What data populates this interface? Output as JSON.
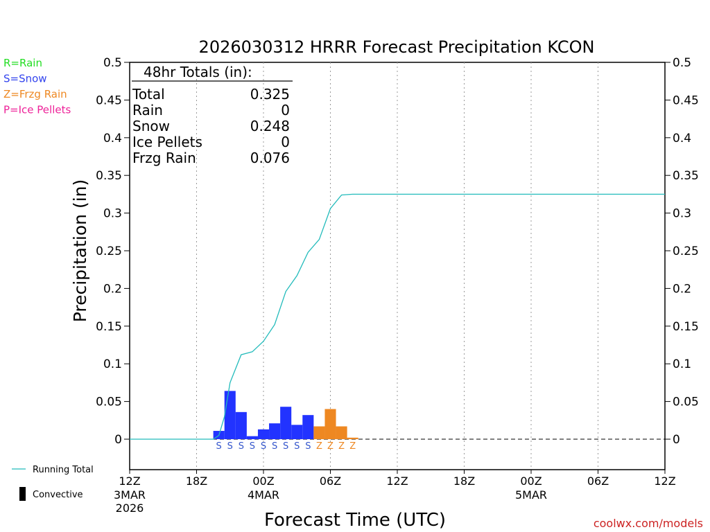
{
  "chart_data": {
    "type": "bar",
    "title": "2026030312 HRRR Forecast Precipitation KCON",
    "xlabel": "Forecast Time (UTC)",
    "ylabel": "Precipitation (in)",
    "ylim": [
      0,
      0.5
    ],
    "y_ticks": [
      "0.5",
      "0.45",
      "0.4",
      "0.35",
      "0.3",
      "0.25",
      "0.2",
      "0.15",
      "0.1",
      "0.05",
      "0"
    ],
    "x_range_hours": [
      0,
      48
    ],
    "x_ticks": [
      {
        "hour": 0,
        "label": "12Z"
      },
      {
        "hour": 6,
        "label": "18Z"
      },
      {
        "hour": 12,
        "label": "00Z"
      },
      {
        "hour": 18,
        "label": "06Z"
      },
      {
        "hour": 24,
        "label": "12Z"
      },
      {
        "hour": 30,
        "label": "18Z"
      },
      {
        "hour": 36,
        "label": "00Z"
      },
      {
        "hour": 42,
        "label": "06Z"
      },
      {
        "hour": 48,
        "label": "12Z"
      }
    ],
    "date_labels": [
      {
        "hour": 0,
        "lines": [
          "3MAR",
          "2026"
        ]
      },
      {
        "hour": 12,
        "lines": [
          "4MAR"
        ]
      },
      {
        "hour": 36,
        "lines": [
          "5MAR"
        ]
      }
    ],
    "legend_types": [
      {
        "label": "R=Rain",
        "color": "#22dd22"
      },
      {
        "label": "S=Snow",
        "color": "#3344ee"
      },
      {
        "label": "Z=Frzg Rain",
        "color": "#ee8822"
      },
      {
        "label": "P=Ice Pellets",
        "color": "#ee2299"
      }
    ],
    "legend_lines": [
      {
        "label": "Running Total",
        "color": "#22bbbb",
        "kind": "line"
      },
      {
        "label": "Convective",
        "color": "#000000",
        "kind": "bar"
      }
    ],
    "hourly_bars": [
      {
        "hour": 8,
        "value": 0.011,
        "type": "S"
      },
      {
        "hour": 9,
        "value": 0.064,
        "type": "S"
      },
      {
        "hour": 10,
        "value": 0.036,
        "type": "S"
      },
      {
        "hour": 11,
        "value": 0.004,
        "type": "S"
      },
      {
        "hour": 12,
        "value": 0.013,
        "type": "S"
      },
      {
        "hour": 13,
        "value": 0.021,
        "type": "S"
      },
      {
        "hour": 14,
        "value": 0.043,
        "type": "S"
      },
      {
        "hour": 15,
        "value": 0.019,
        "type": "S"
      },
      {
        "hour": 16,
        "value": 0.032,
        "type": "S"
      },
      {
        "hour": 17,
        "value": 0.017,
        "type": "Z"
      },
      {
        "hour": 18,
        "value": 0.04,
        "type": "Z"
      },
      {
        "hour": 19,
        "value": 0.017,
        "type": "Z"
      },
      {
        "hour": 20,
        "value": 0.002,
        "type": "Z"
      }
    ],
    "type_colors": {
      "S": "#2233ff",
      "Z": "#ee8822",
      "R": "#22dd22",
      "P": "#ee2299"
    },
    "type_label_colors": {
      "S": "#3355cc",
      "Z": "#ee8822",
      "R": "#22dd22",
      "P": "#ee2299"
    },
    "running_total": {
      "name": "Running Total",
      "color": "#22bbbb",
      "x": [
        0,
        7.5,
        8,
        8.5,
        9,
        10,
        11,
        12,
        13,
        14,
        15,
        16,
        17,
        18,
        19,
        20,
        48
      ],
      "y": [
        0,
        0,
        0.005,
        0.03,
        0.075,
        0.112,
        0.116,
        0.13,
        0.152,
        0.196,
        0.217,
        0.248,
        0.265,
        0.306,
        0.324,
        0.325,
        0.325
      ]
    },
    "totals_box": {
      "header": "48hr Totals (in):",
      "rows": [
        {
          "label": "Total",
          "value": "0.325"
        },
        {
          "label": "Rain",
          "value": "0"
        },
        {
          "label": "Snow",
          "value": "0.248"
        },
        {
          "label": "Ice Pellets",
          "value": "0"
        },
        {
          "label": "Frzg Rain",
          "value": "0.076"
        }
      ]
    },
    "credit": "coolwx.com/models"
  }
}
